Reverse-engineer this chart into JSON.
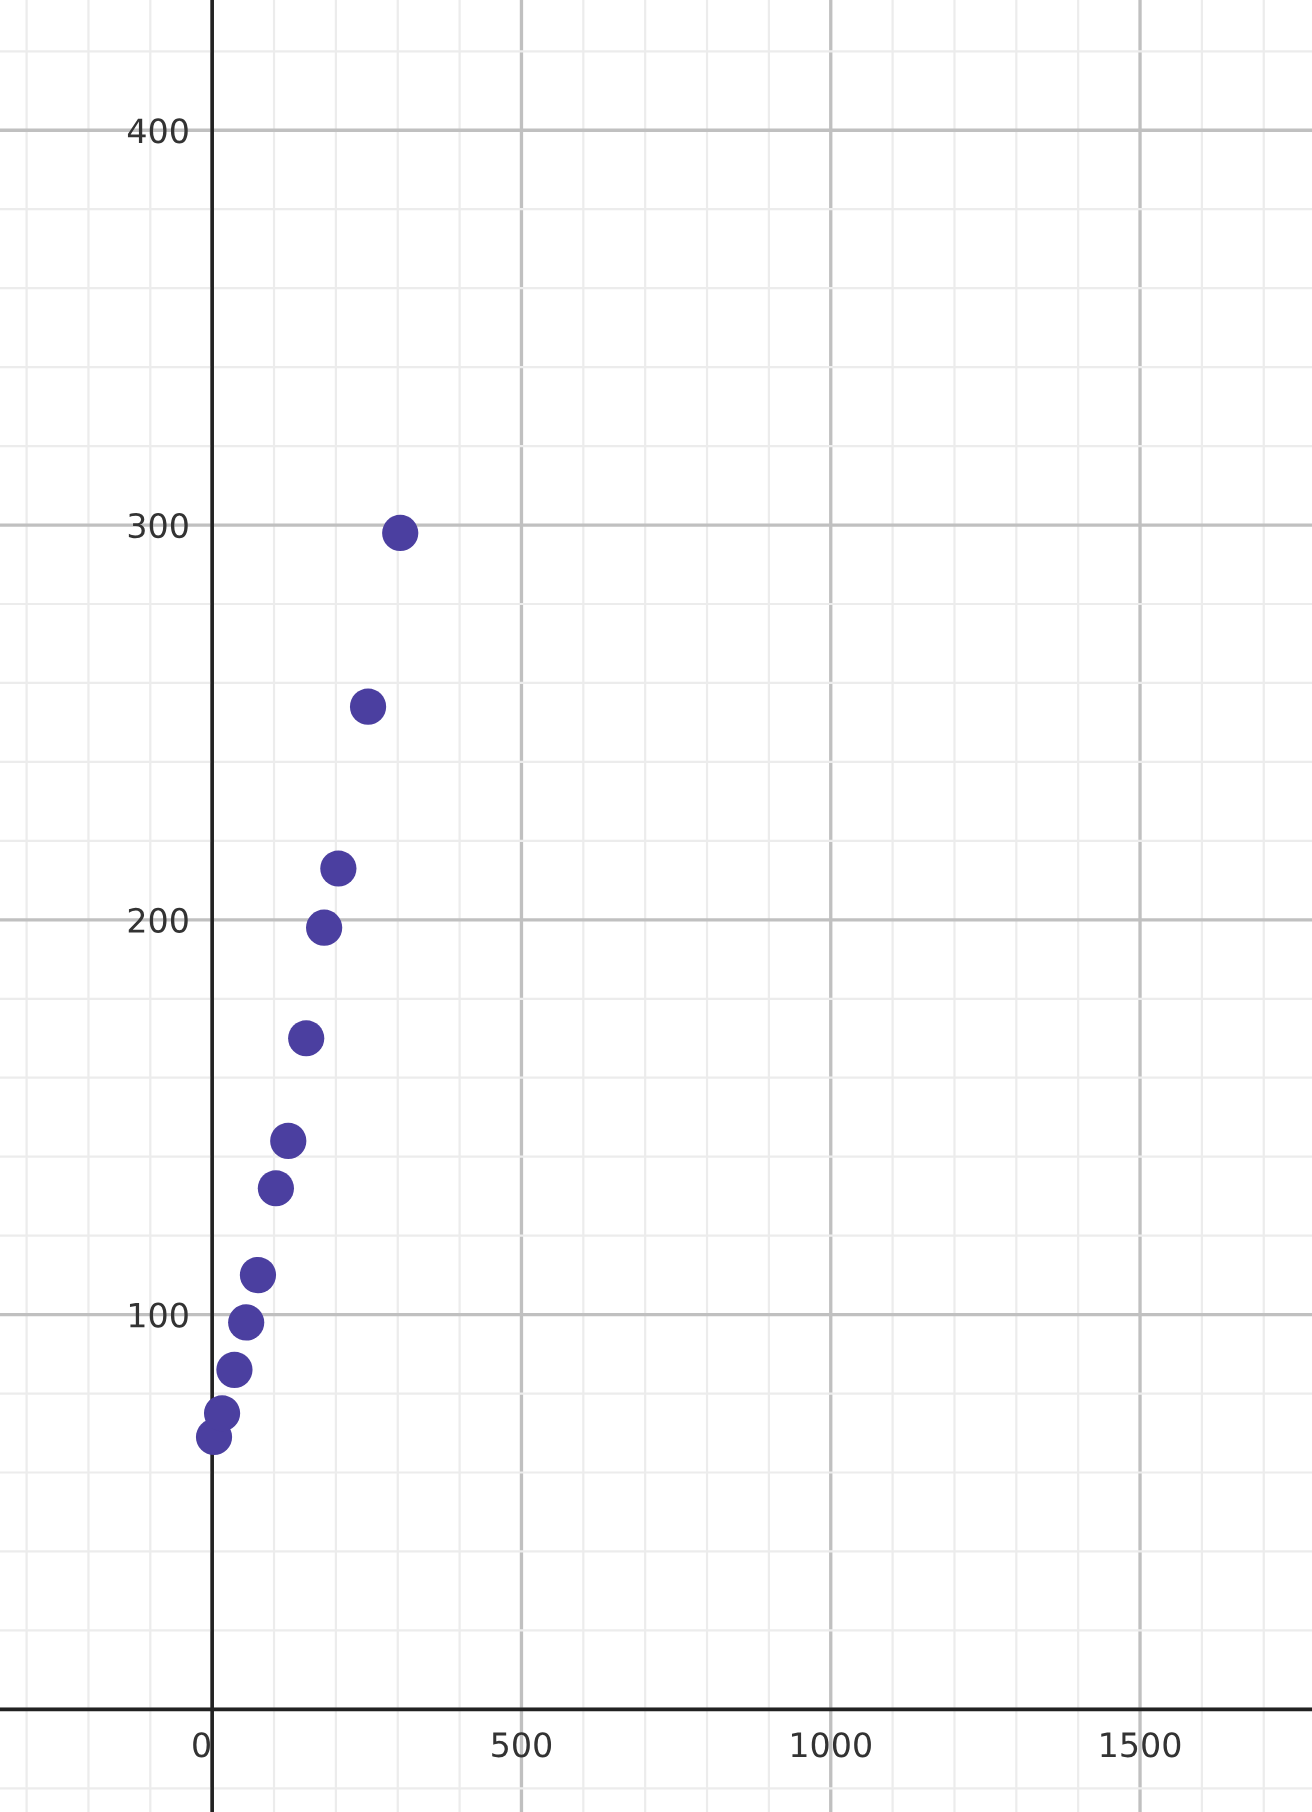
{
  "chart_data": {
    "type": "scatter",
    "x": [
      3,
      16,
      36,
      55,
      74,
      103,
      123,
      152,
      181,
      204,
      252,
      304
    ],
    "values": [
      69,
      75,
      86,
      98,
      110,
      132,
      144,
      170,
      198,
      213,
      254,
      298
    ],
    "color": "#4b3fa0",
    "marker": "circle",
    "grid": true,
    "xlim": [
      -343,
      1778
    ],
    "ylim": [
      -26,
      433
    ],
    "xticks": [
      0,
      500,
      1000,
      1500
    ],
    "yticks": [
      100,
      200,
      300,
      400
    ]
  }
}
